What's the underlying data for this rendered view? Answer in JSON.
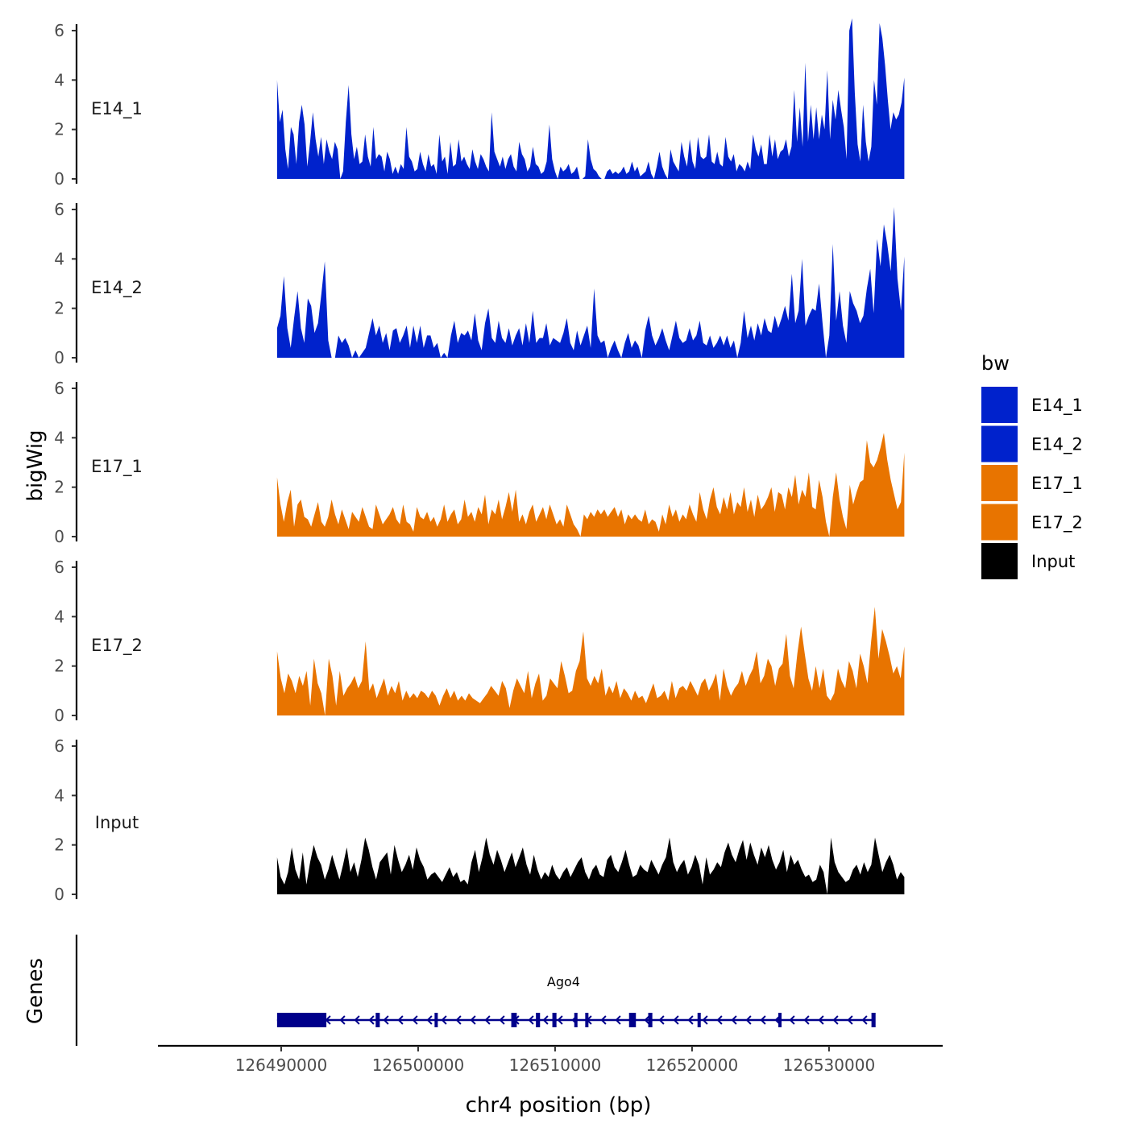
{
  "chart_data": {
    "type": "area",
    "ylabel": "bigWig",
    "xlabel": "chr4 position (bp)",
    "genes_label": "Genes",
    "ylim": [
      0,
      6.9
    ],
    "y_ticks": [
      "0",
      "2",
      "4",
      "6"
    ],
    "x_ticks": [
      "126490000",
      "126500000",
      "126510000",
      "126520000",
      "126530000"
    ],
    "x_tick_values": [
      126490000,
      126500000,
      126510000,
      126520000,
      126530000
    ],
    "xlim": [
      126481000,
      126538300
    ],
    "track_range": [
      126489700,
      126535500
    ],
    "legend": {
      "title": "bw",
      "entries": [
        {
          "label": "E14_1",
          "color": "#0022CC"
        },
        {
          "label": "E14_2",
          "color": "#0022CC"
        },
        {
          "label": "E17_1",
          "color": "#E87400"
        },
        {
          "label": "E17_2",
          "color": "#E87400"
        },
        {
          "label": "Input",
          "color": "#000000"
        }
      ]
    },
    "series": [
      {
        "name": "E14_1",
        "color": "#0022CC",
        "values": [
          4.0,
          2.3,
          2.8,
          1.2,
          0.4,
          2.1,
          1.8,
          0.6,
          2.3,
          3.0,
          2.2,
          0.5,
          1.5,
          2.7,
          1.6,
          0.9,
          1.7,
          0.6,
          1.6,
          1.1,
          0.8,
          1.5,
          1.2,
          0.0,
          0.3,
          2.3,
          3.8,
          1.8,
          0.8,
          1.3,
          0.6,
          0.7,
          1.8,
          0.9,
          0.5,
          2.1,
          0.8,
          1.0,
          0.9,
          0.3,
          1.1,
          0.8,
          0.2,
          0.5,
          0.2,
          0.6,
          0.4,
          2.1,
          0.9,
          0.7,
          0.3,
          0.4,
          1.1,
          0.6,
          0.3,
          1.0,
          0.5,
          0.6,
          0.2,
          1.8,
          0.7,
          0.9,
          0.2,
          1.5,
          0.5,
          0.6,
          1.6,
          0.7,
          0.9,
          0.6,
          0.4,
          1.2,
          0.7,
          0.4,
          1.0,
          0.8,
          0.5,
          0.3,
          2.7,
          1.1,
          0.8,
          0.5,
          0.9,
          0.4,
          0.8,
          1.0,
          0.5,
          0.3,
          1.5,
          1.0,
          0.8,
          0.3,
          0.5,
          1.3,
          0.6,
          0.5,
          0.2,
          0.3,
          0.7,
          2.2,
          0.8,
          0.3,
          0.0,
          0.5,
          0.3,
          0.4,
          0.6,
          0.2,
          0.3,
          0.5,
          0.0,
          0.0,
          0.1,
          1.6,
          0.8,
          0.4,
          0.3,
          0.1,
          0.0,
          0.0,
          0.3,
          0.4,
          0.2,
          0.3,
          0.2,
          0.3,
          0.5,
          0.2,
          0.3,
          0.7,
          0.3,
          0.5,
          0.1,
          0.2,
          0.3,
          0.7,
          0.2,
          0.0,
          0.5,
          1.1,
          0.5,
          0.2,
          0.0,
          1.2,
          0.7,
          0.5,
          0.3,
          1.5,
          0.9,
          0.5,
          1.6,
          0.7,
          0.4,
          1.7,
          0.9,
          0.8,
          0.9,
          1.8,
          0.7,
          0.6,
          1.1,
          0.6,
          0.5,
          1.7,
          0.9,
          0.7,
          1.0,
          0.3,
          0.6,
          0.5,
          0.3,
          0.7,
          0.4,
          1.8,
          1.2,
          0.9,
          1.4,
          0.6,
          0.6,
          1.8,
          0.9,
          1.6,
          0.8,
          1.1,
          1.2,
          1.6,
          0.9,
          1.3,
          3.6,
          1.5,
          2.9,
          1.3,
          4.7,
          1.5,
          3.0,
          1.6,
          2.9,
          1.6,
          2.6,
          2.0,
          4.4,
          1.6,
          3.2,
          2.4,
          3.6,
          2.8,
          2.1,
          0.8,
          6.0,
          6.5,
          3.5,
          1.4,
          0.7,
          3.0,
          1.5,
          0.7,
          1.3,
          4.0,
          3.0,
          6.3,
          5.7,
          4.6,
          3.2,
          2.0,
          2.7,
          2.4,
          2.6,
          3.1,
          4.1
        ]
      },
      {
        "name": "E14_2",
        "color": "#0022CC",
        "values": [
          1.2,
          1.7,
          3.3,
          1.2,
          0.4,
          1.6,
          2.7,
          1.2,
          0.6,
          2.4,
          2.1,
          1.0,
          1.4,
          2.6,
          3.9,
          0.7,
          0.0,
          0.0,
          0.9,
          0.6,
          0.8,
          0.5,
          0.0,
          0.3,
          0.0,
          0.2,
          0.4,
          1.0,
          1.6,
          0.9,
          1.3,
          0.6,
          1.0,
          0.3,
          1.1,
          1.2,
          0.6,
          0.9,
          1.3,
          0.4,
          1.3,
          0.6,
          1.3,
          0.4,
          0.9,
          0.9,
          0.4,
          0.6,
          0.0,
          0.2,
          0.0,
          0.9,
          1.5,
          0.6,
          1.0,
          0.9,
          1.1,
          0.7,
          1.8,
          0.7,
          0.3,
          1.4,
          2.0,
          0.8,
          0.6,
          1.5,
          0.8,
          0.6,
          1.2,
          0.5,
          0.9,
          1.2,
          0.5,
          1.4,
          0.6,
          1.9,
          0.6,
          0.8,
          0.8,
          1.4,
          0.5,
          0.8,
          0.7,
          0.6,
          1.0,
          1.6,
          0.6,
          0.3,
          1.1,
          0.5,
          0.9,
          1.3,
          0.4,
          2.8,
          0.9,
          0.6,
          0.7,
          0.0,
          0.4,
          0.7,
          0.3,
          0.0,
          0.6,
          1.0,
          0.4,
          0.7,
          0.5,
          0.0,
          1.1,
          1.7,
          0.9,
          0.5,
          0.8,
          1.2,
          0.7,
          0.3,
          0.9,
          1.5,
          0.8,
          0.6,
          0.7,
          1.2,
          0.7,
          0.9,
          1.5,
          0.6,
          0.5,
          0.9,
          0.4,
          0.6,
          0.9,
          0.5,
          0.9,
          0.4,
          0.7,
          0.0,
          0.6,
          1.9,
          0.8,
          1.3,
          0.7,
          1.4,
          0.9,
          1.6,
          1.1,
          1.0,
          1.7,
          1.2,
          1.6,
          2.1,
          1.5,
          3.4,
          1.4,
          1.9,
          4.0,
          1.3,
          1.7,
          2.0,
          1.9,
          3.0,
          1.4,
          0.0,
          0.9,
          4.6,
          1.5,
          2.7,
          1.3,
          0.6,
          2.7,
          2.2,
          1.9,
          1.4,
          1.7,
          2.8,
          3.6,
          1.8,
          4.8,
          3.7,
          5.4,
          4.6,
          3.5,
          6.1,
          3.2,
          1.9,
          4.1
        ]
      },
      {
        "name": "E17_1",
        "color": "#E87400",
        "values": [
          2.4,
          1.3,
          0.6,
          1.4,
          1.9,
          0.4,
          1.3,
          1.5,
          0.8,
          0.7,
          0.4,
          0.9,
          1.4,
          0.6,
          0.4,
          0.8,
          1.5,
          0.9,
          0.5,
          1.1,
          0.7,
          0.3,
          1.0,
          0.8,
          0.6,
          1.2,
          0.8,
          0.4,
          0.3,
          1.3,
          0.9,
          0.5,
          0.7,
          0.9,
          1.2,
          0.7,
          0.5,
          1.3,
          0.6,
          0.5,
          0.2,
          1.2,
          0.8,
          0.7,
          1.0,
          0.6,
          0.8,
          0.4,
          0.7,
          1.3,
          0.6,
          0.9,
          1.1,
          0.5,
          0.7,
          1.5,
          0.8,
          1.0,
          0.6,
          1.2,
          0.9,
          1.7,
          0.5,
          1.1,
          0.9,
          1.5,
          0.7,
          1.2,
          1.8,
          1.0,
          1.9,
          0.6,
          0.9,
          0.5,
          1.0,
          1.3,
          0.6,
          0.9,
          1.2,
          0.7,
          1.3,
          0.9,
          0.5,
          0.7,
          0.4,
          1.3,
          0.9,
          0.5,
          0.3,
          0.0,
          0.9,
          0.7,
          1.0,
          0.8,
          1.1,
          0.9,
          1.1,
          0.8,
          1.0,
          1.2,
          0.8,
          1.1,
          0.5,
          0.9,
          0.7,
          0.9,
          0.7,
          0.6,
          1.1,
          0.5,
          0.7,
          0.6,
          0.2,
          0.9,
          0.5,
          1.3,
          0.8,
          1.1,
          0.6,
          0.9,
          0.7,
          1.3,
          0.9,
          0.6,
          1.8,
          1.1,
          0.7,
          1.5,
          2.0,
          1.2,
          0.9,
          1.6,
          1.1,
          1.8,
          0.9,
          1.4,
          1.2,
          2.0,
          1.0,
          1.5,
          0.8,
          1.7,
          1.1,
          1.3,
          1.6,
          2.0,
          1.0,
          1.8,
          1.7,
          1.1,
          2.0,
          1.6,
          2.5,
          1.3,
          1.9,
          1.6,
          2.6,
          1.2,
          1.1,
          2.3,
          1.6,
          0.6,
          0.0,
          1.6,
          2.6,
          1.5,
          0.8,
          0.3,
          2.1,
          1.3,
          1.8,
          2.2,
          2.3,
          3.9,
          3.0,
          2.8,
          3.1,
          3.6,
          4.2,
          3.1,
          2.3,
          1.7,
          1.1,
          1.4,
          3.4
        ]
      },
      {
        "name": "E17_2",
        "color": "#E87400",
        "values": [
          2.6,
          1.5,
          0.9,
          1.7,
          1.4,
          0.9,
          1.6,
          1.2,
          1.8,
          0.4,
          2.3,
          1.3,
          0.9,
          0.0,
          2.3,
          1.6,
          0.4,
          1.8,
          0.8,
          1.1,
          1.3,
          1.6,
          1.1,
          1.4,
          3.0,
          1.0,
          1.3,
          0.7,
          1.1,
          1.5,
          0.8,
          1.2,
          0.9,
          1.4,
          0.6,
          1.0,
          0.7,
          0.9,
          0.7,
          1.0,
          0.9,
          0.7,
          1.0,
          0.8,
          0.4,
          0.8,
          1.1,
          0.7,
          1.0,
          0.6,
          0.8,
          0.6,
          0.9,
          0.7,
          0.6,
          0.5,
          0.7,
          0.9,
          1.2,
          1.0,
          0.8,
          1.4,
          1.1,
          0.3,
          1.0,
          1.5,
          1.2,
          0.9,
          1.8,
          0.7,
          1.3,
          1.7,
          0.6,
          0.8,
          1.5,
          1.3,
          1.1,
          2.2,
          1.6,
          0.9,
          1.0,
          1.8,
          2.2,
          3.4,
          1.5,
          1.2,
          1.6,
          1.3,
          1.9,
          0.8,
          1.2,
          0.9,
          1.4,
          0.7,
          1.1,
          0.9,
          0.6,
          1.0,
          0.7,
          0.8,
          0.5,
          0.9,
          1.3,
          0.7,
          0.8,
          1.0,
          0.6,
          1.4,
          0.7,
          1.1,
          1.2,
          1.0,
          1.4,
          1.1,
          0.8,
          1.3,
          1.5,
          1.0,
          1.3,
          1.7,
          0.6,
          1.9,
          1.2,
          0.8,
          1.1,
          1.3,
          1.8,
          1.2,
          1.6,
          1.9,
          2.6,
          1.3,
          1.6,
          2.3,
          2.0,
          1.2,
          1.9,
          2.1,
          3.3,
          1.6,
          1.1,
          2.5,
          3.6,
          2.5,
          1.5,
          1.0,
          2.0,
          1.1,
          1.9,
          0.8,
          0.6,
          0.9,
          1.9,
          1.4,
          1.1,
          2.2,
          1.8,
          1.1,
          2.5,
          2.0,
          1.3,
          3.0,
          4.4,
          2.3,
          3.5,
          3.0,
          2.4,
          1.7,
          2.0,
          1.5,
          2.8
        ]
      },
      {
        "name": "Input",
        "color": "#000000",
        "values": [
          1.5,
          0.7,
          0.4,
          0.9,
          1.9,
          1.0,
          0.6,
          1.7,
          0.4,
          1.3,
          2.0,
          1.5,
          1.2,
          0.6,
          1.0,
          1.6,
          1.1,
          0.6,
          1.2,
          1.9,
          0.9,
          1.3,
          0.7,
          1.4,
          2.3,
          1.8,
          1.1,
          0.6,
          1.3,
          1.5,
          1.7,
          0.8,
          2.0,
          1.4,
          0.9,
          1.2,
          1.6,
          1.0,
          1.9,
          1.4,
          1.1,
          0.6,
          0.8,
          0.9,
          0.7,
          0.5,
          0.8,
          1.1,
          0.7,
          0.9,
          0.5,
          0.6,
          0.4,
          1.3,
          1.8,
          0.9,
          1.5,
          2.3,
          1.6,
          1.2,
          1.8,
          1.4,
          0.9,
          1.3,
          1.7,
          1.1,
          1.5,
          1.9,
          1.2,
          0.8,
          1.6,
          1.0,
          0.6,
          0.9,
          0.7,
          1.2,
          0.8,
          0.6,
          0.9,
          1.1,
          0.7,
          1.0,
          1.3,
          1.5,
          0.9,
          0.6,
          1.0,
          1.2,
          0.8,
          0.7,
          1.4,
          1.6,
          1.1,
          0.9,
          1.3,
          1.8,
          1.2,
          0.7,
          0.8,
          1.2,
          1.0,
          0.9,
          1.4,
          1.1,
          0.8,
          1.2,
          1.5,
          2.3,
          1.3,
          0.9,
          1.2,
          1.4,
          0.8,
          1.1,
          1.6,
          1.2,
          0.4,
          1.5,
          0.8,
          1.0,
          1.3,
          1.1,
          1.7,
          2.1,
          1.6,
          1.3,
          1.8,
          2.2,
          1.4,
          2.1,
          1.6,
          1.2,
          1.9,
          1.5,
          2.0,
          1.4,
          1.0,
          1.3,
          1.8,
          0.9,
          1.6,
          1.2,
          1.4,
          1.0,
          0.7,
          0.8,
          0.5,
          0.6,
          1.2,
          0.9,
          0.0,
          2.3,
          1.3,
          0.9,
          0.7,
          0.5,
          0.6,
          1.0,
          1.2,
          0.8,
          1.3,
          0.9,
          1.2,
          2.3,
          1.6,
          0.9,
          1.3,
          1.6,
          1.2,
          0.6,
          0.9,
          0.7
        ]
      }
    ],
    "gene": {
      "name": "Ago4",
      "start": 126489700,
      "end": 126533300,
      "strand": "-",
      "exons": [
        {
          "start": 126489700,
          "end": 126493300
        },
        {
          "start": 126496900,
          "end": 126497200
        },
        {
          "start": 126501200,
          "end": 126501400
        },
        {
          "start": 126506800,
          "end": 126507200
        },
        {
          "start": 126508600,
          "end": 126508900
        },
        {
          "start": 126509800,
          "end": 126510100
        },
        {
          "start": 126511400,
          "end": 126511600
        },
        {
          "start": 126512200,
          "end": 126512400
        },
        {
          "start": 126515400,
          "end": 126515900
        },
        {
          "start": 126516800,
          "end": 126517100
        },
        {
          "start": 126520400,
          "end": 126520600
        },
        {
          "start": 126526300,
          "end": 126526500
        },
        {
          "start": 126533100,
          "end": 126533400
        }
      ]
    }
  }
}
